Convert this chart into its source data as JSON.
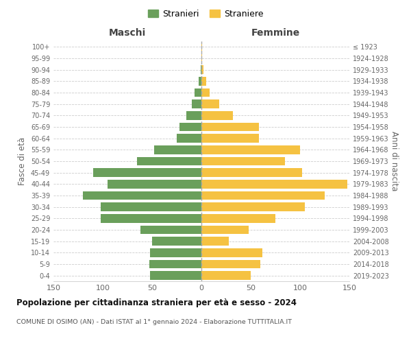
{
  "age_groups": [
    "0-4",
    "5-9",
    "10-14",
    "15-19",
    "20-24",
    "25-29",
    "30-34",
    "35-39",
    "40-44",
    "45-49",
    "50-54",
    "55-59",
    "60-64",
    "65-69",
    "70-74",
    "75-79",
    "80-84",
    "85-89",
    "90-94",
    "95-99",
    "100+"
  ],
  "birth_years": [
    "2019-2023",
    "2014-2018",
    "2009-2013",
    "2004-2008",
    "1999-2003",
    "1994-1998",
    "1989-1993",
    "1984-1988",
    "1979-1983",
    "1974-1978",
    "1969-1973",
    "1964-1968",
    "1959-1963",
    "1954-1958",
    "1949-1953",
    "1944-1948",
    "1939-1943",
    "1934-1938",
    "1929-1933",
    "1924-1928",
    "≤ 1923"
  ],
  "maschi": [
    52,
    53,
    52,
    50,
    62,
    102,
    102,
    120,
    95,
    110,
    65,
    48,
    25,
    22,
    15,
    10,
    7,
    3,
    1,
    0,
    0
  ],
  "femmine": [
    50,
    60,
    62,
    28,
    48,
    75,
    105,
    125,
    148,
    102,
    85,
    100,
    58,
    58,
    32,
    18,
    8,
    5,
    2,
    1,
    1
  ],
  "color_maschi": "#6a9f5b",
  "color_femmine": "#f5c242",
  "title": "Popolazione per cittadinanza straniera per età e sesso - 2024",
  "subtitle": "COMUNE DI OSIMO (AN) - Dati ISTAT al 1° gennaio 2024 - Elaborazione TUTTITALIA.IT",
  "xlabel_left": "Maschi",
  "xlabel_right": "Femmine",
  "ylabel_left": "Fasce di età",
  "ylabel_right": "Anni di nascita",
  "legend_stranieri": "Stranieri",
  "legend_straniere": "Straniere",
  "xlim": 150,
  "background_color": "#ffffff",
  "grid_color": "#cccccc",
  "dashed_line_color": "#aaaaaa"
}
